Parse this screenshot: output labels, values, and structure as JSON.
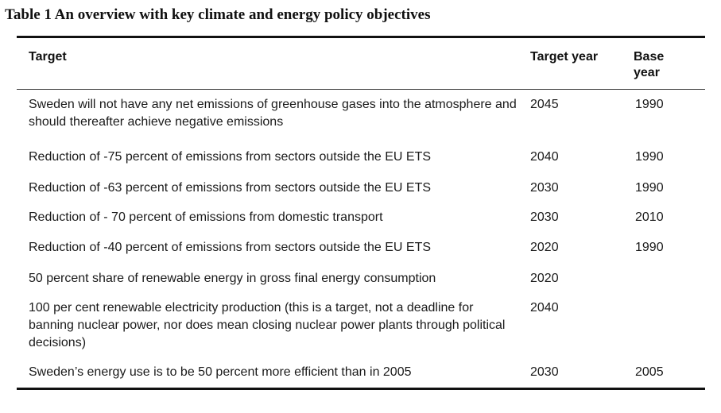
{
  "caption": "Table 1 An overview with key climate and energy policy objectives",
  "table": {
    "headers": {
      "target": "Target",
      "target_year": "Target year",
      "base_year": "Base year"
    },
    "rows": [
      {
        "target": "Sweden will not have any net emissions of greenhouse gases into the atmosphere and should thereafter achieve negative emissions",
        "target_year": "2045",
        "base_year": "1990"
      },
      {
        "target": "Reduction of -75 percent of emissions from sectors outside the EU ETS",
        "target_year": "2040",
        "base_year": "1990"
      },
      {
        "target": "Reduction of -63 percent of emissions from sectors outside the EU ETS",
        "target_year": "2030",
        "base_year": "1990"
      },
      {
        "target": "Reduction of - 70 percent of emissions from domestic transport",
        "target_year": "2030",
        "base_year": "2010"
      },
      {
        "target": "Reduction of -40 percent of emissions from sectors outside the EU ETS",
        "target_year": "2020",
        "base_year": "1990"
      },
      {
        "target": "50 percent share of renewable energy in gross final energy consumption",
        "target_year": "2020",
        "base_year": ""
      },
      {
        "target": "100 per cent renewable electricity production (this is a target, not a deadline for banning nuclear power, nor does mean closing nuclear power plants through political decisions)",
        "target_year": "2040",
        "base_year": ""
      },
      {
        "target": "Sweden’s energy use is to be 50 percent more efficient than in 2005",
        "target_year": "2030",
        "base_year": "2005"
      }
    ]
  }
}
